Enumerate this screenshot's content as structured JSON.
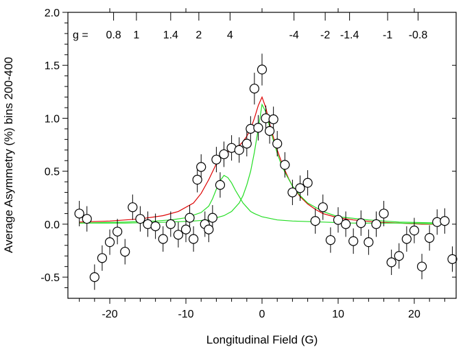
{
  "chart_data": {
    "type": "scatter",
    "xlabel": "Longitudinal Field (G)",
    "ylabel": "Average Asymmetry (%) bins 200-400",
    "xlim": [
      -25.5,
      25.5
    ],
    "ylim": [
      -0.7,
      2.0
    ],
    "x_ticks": [
      -20,
      -10,
      0,
      10,
      20
    ],
    "x_tick_labels": [
      "-20",
      "-10",
      "0",
      "10",
      "20"
    ],
    "y_ticks": [
      2.0,
      1.5,
      1.0,
      0.5,
      0.0,
      -0.5
    ],
    "y_tick_labels": [
      "2.0",
      "1.5",
      "1.0",
      "0.5",
      "0.0",
      "-0.5"
    ],
    "grid": false,
    "legend": "none",
    "top_axis": {
      "prefix": "g =",
      "ticks": [
        {
          "x": -19.5,
          "label": "0.8"
        },
        {
          "x": -16.5,
          "label": "1"
        },
        {
          "x": -12,
          "label": "1.4"
        },
        {
          "x": -8.3,
          "label": "2"
        },
        {
          "x": -4.2,
          "label": "4"
        },
        {
          "x": 4.2,
          "label": "-4"
        },
        {
          "x": 8.3,
          "label": "-2"
        },
        {
          "x": 11.5,
          "label": "-1.4"
        },
        {
          "x": 16.5,
          "label": "-1"
        },
        {
          "x": 20.5,
          "label": "-0.8"
        }
      ]
    },
    "series": [
      {
        "kind": "points_with_errorbars",
        "marker": "open-circle",
        "color": "#000000",
        "points": [
          {
            "x": -24,
            "y": 0.1,
            "err": 0.12
          },
          {
            "x": -23,
            "y": 0.05,
            "err": 0.12
          },
          {
            "x": -22,
            "y": -0.5,
            "err": 0.12
          },
          {
            "x": -21,
            "y": -0.32,
            "err": 0.12
          },
          {
            "x": -20,
            "y": -0.17,
            "err": 0.12
          },
          {
            "x": -19,
            "y": -0.07,
            "err": 0.12
          },
          {
            "x": -18,
            "y": -0.26,
            "err": 0.12
          },
          {
            "x": -17,
            "y": 0.16,
            "err": 0.12
          },
          {
            "x": -16,
            "y": 0.05,
            "err": 0.12
          },
          {
            "x": -15,
            "y": 0.0,
            "err": 0.12
          },
          {
            "x": -14,
            "y": -0.02,
            "err": 0.12
          },
          {
            "x": -13,
            "y": -0.14,
            "err": 0.12
          },
          {
            "x": -12,
            "y": 0.0,
            "err": 0.12
          },
          {
            "x": -11,
            "y": -0.1,
            "err": 0.12
          },
          {
            "x": -10,
            "y": -0.05,
            "err": 0.12
          },
          {
            "x": -9.5,
            "y": 0.06,
            "err": 0.12
          },
          {
            "x": -9,
            "y": -0.14,
            "err": 0.12
          },
          {
            "x": -8.5,
            "y": 0.42,
            "err": 0.12
          },
          {
            "x": -8,
            "y": 0.54,
            "err": 0.12
          },
          {
            "x": -7.5,
            "y": 0.0,
            "err": 0.12
          },
          {
            "x": -7,
            "y": -0.05,
            "err": 0.12
          },
          {
            "x": -6.5,
            "y": 0.06,
            "err": 0.12
          },
          {
            "x": -6,
            "y": 0.61,
            "err": 0.12
          },
          {
            "x": -5.5,
            "y": 0.37,
            "err": 0.12
          },
          {
            "x": -5,
            "y": 0.66,
            "err": 0.12
          },
          {
            "x": -4,
            "y": 0.72,
            "err": 0.12
          },
          {
            "x": -3,
            "y": 0.7,
            "err": 0.12
          },
          {
            "x": -2,
            "y": 0.76,
            "err": 0.12
          },
          {
            "x": -1.5,
            "y": 0.9,
            "err": 0.12
          },
          {
            "x": -1,
            "y": 1.28,
            "err": 0.15
          },
          {
            "x": -0.5,
            "y": 0.91,
            "err": 0.12
          },
          {
            "x": 0,
            "y": 1.46,
            "err": 0.15
          },
          {
            "x": 0.5,
            "y": 1.0,
            "err": 0.12
          },
          {
            "x": 1,
            "y": 0.88,
            "err": 0.12
          },
          {
            "x": 1.5,
            "y": 0.99,
            "err": 0.12
          },
          {
            "x": 2,
            "y": 0.76,
            "err": 0.12
          },
          {
            "x": 3,
            "y": 0.56,
            "err": 0.12
          },
          {
            "x": 4,
            "y": 0.3,
            "err": 0.12
          },
          {
            "x": 5,
            "y": 0.34,
            "err": 0.12
          },
          {
            "x": 6,
            "y": 0.39,
            "err": 0.12
          },
          {
            "x": 7,
            "y": 0.03,
            "err": 0.12
          },
          {
            "x": 8,
            "y": 0.16,
            "err": 0.12
          },
          {
            "x": 9,
            "y": -0.15,
            "err": 0.12
          },
          {
            "x": 10,
            "y": 0.04,
            "err": 0.12
          },
          {
            "x": 11,
            "y": 0.0,
            "err": 0.12
          },
          {
            "x": 12,
            "y": -0.16,
            "err": 0.12
          },
          {
            "x": 13,
            "y": 0.01,
            "err": 0.12
          },
          {
            "x": 14,
            "y": -0.17,
            "err": 0.12
          },
          {
            "x": 15,
            "y": 0.0,
            "err": 0.12
          },
          {
            "x": 16,
            "y": 0.1,
            "err": 0.12
          },
          {
            "x": 17,
            "y": -0.36,
            "err": 0.12
          },
          {
            "x": 18,
            "y": -0.3,
            "err": 0.12
          },
          {
            "x": 19,
            "y": -0.14,
            "err": 0.12
          },
          {
            "x": 20,
            "y": -0.06,
            "err": 0.12
          },
          {
            "x": 21,
            "y": -0.4,
            "err": 0.12
          },
          {
            "x": 22,
            "y": -0.13,
            "err": 0.12
          },
          {
            "x": 23,
            "y": 0.02,
            "err": 0.12
          },
          {
            "x": 24,
            "y": 0.03,
            "err": 0.12
          },
          {
            "x": 25,
            "y": -0.33,
            "err": 0.12
          }
        ]
      },
      {
        "kind": "line",
        "color": "#dd0000",
        "x": [
          -24,
          -20,
          -16,
          -13,
          -11,
          -9,
          -8,
          -7,
          -6,
          -5.5,
          -5,
          -4.5,
          -4,
          -3.5,
          -3,
          -2.5,
          -2,
          -1.5,
          -1,
          -0.5,
          0,
          0.5,
          1,
          1.5,
          2,
          2.5,
          3,
          3.5,
          4,
          5,
          6,
          7,
          8,
          10,
          12,
          15,
          18,
          21,
          24
        ],
        "y": [
          0.02,
          0.03,
          0.05,
          0.08,
          0.12,
          0.2,
          0.29,
          0.42,
          0.57,
          0.63,
          0.66,
          0.68,
          0.7,
          0.72,
          0.74,
          0.78,
          0.83,
          0.9,
          1.0,
          1.12,
          1.2,
          1.1,
          0.95,
          0.82,
          0.7,
          0.6,
          0.51,
          0.43,
          0.36,
          0.26,
          0.19,
          0.14,
          0.1,
          0.06,
          0.04,
          0.02,
          0.01,
          0.0,
          0.0
        ]
      },
      {
        "kind": "line",
        "color": "#22dd22",
        "x": [
          -24,
          -18,
          -14,
          -12,
          -10,
          -8,
          -7,
          -6.5,
          -6,
          -5.5,
          -5,
          -4.5,
          -4,
          -3.5,
          -3,
          -2.5,
          -2,
          -1.5,
          -1,
          0,
          2,
          4,
          8,
          12,
          18,
          24
        ],
        "y": [
          0.01,
          0.02,
          0.03,
          0.04,
          0.06,
          0.11,
          0.17,
          0.24,
          0.33,
          0.41,
          0.46,
          0.44,
          0.39,
          0.32,
          0.26,
          0.2,
          0.16,
          0.12,
          0.1,
          0.07,
          0.04,
          0.03,
          0.02,
          0.01,
          0.01,
          0.0
        ]
      },
      {
        "kind": "line",
        "color": "#22dd22",
        "x": [
          -24,
          -18,
          -12,
          -9,
          -7,
          -6,
          -5,
          -4,
          -3,
          -2.5,
          -2,
          -1.5,
          -1,
          -0.5,
          0,
          0.5,
          1,
          1.5,
          2,
          2.5,
          3,
          4,
          5,
          6,
          8,
          10,
          14,
          18,
          24
        ],
        "y": [
          0.01,
          0.01,
          0.02,
          0.03,
          0.04,
          0.06,
          0.08,
          0.12,
          0.2,
          0.27,
          0.37,
          0.5,
          0.68,
          0.9,
          1.13,
          1.06,
          0.92,
          0.79,
          0.67,
          0.57,
          0.49,
          0.36,
          0.27,
          0.2,
          0.12,
          0.07,
          0.04,
          0.02,
          0.01
        ]
      }
    ]
  }
}
